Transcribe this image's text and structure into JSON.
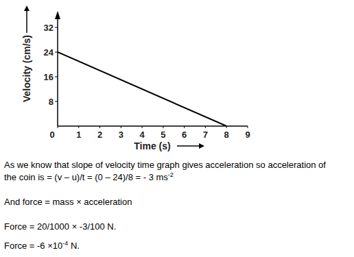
{
  "chart_data": {
    "type": "line",
    "x_label": "Time (s)",
    "y_label": "Velocity (cm/s)",
    "x": [
      0,
      8
    ],
    "values": [
      24,
      0
    ],
    "color": "#000000",
    "xlim": [
      0,
      9
    ],
    "ylim": [
      0,
      36
    ],
    "xticks": [
      0,
      1,
      2,
      3,
      4,
      5,
      6,
      7,
      8,
      9
    ],
    "yticks": [
      8,
      16,
      24,
      32
    ],
    "grid": false
  },
  "document": {
    "lines": [
      {
        "text": "As we know that slope of velocity time graph gives acceleration so acceleration of"
      },
      {
        "text": "the coin is = (v – u)/t = (0 – 24)/8 =  - 3 ms",
        "superscript": "-2"
      },
      {
        "text": "And force = mass × acceleration"
      },
      {
        "text": "Force = 20/1000  × -3/100 N."
      },
      {
        "text": "Force = -6 ×10",
        "superscript": "-4",
        "after": " N."
      }
    ]
  }
}
